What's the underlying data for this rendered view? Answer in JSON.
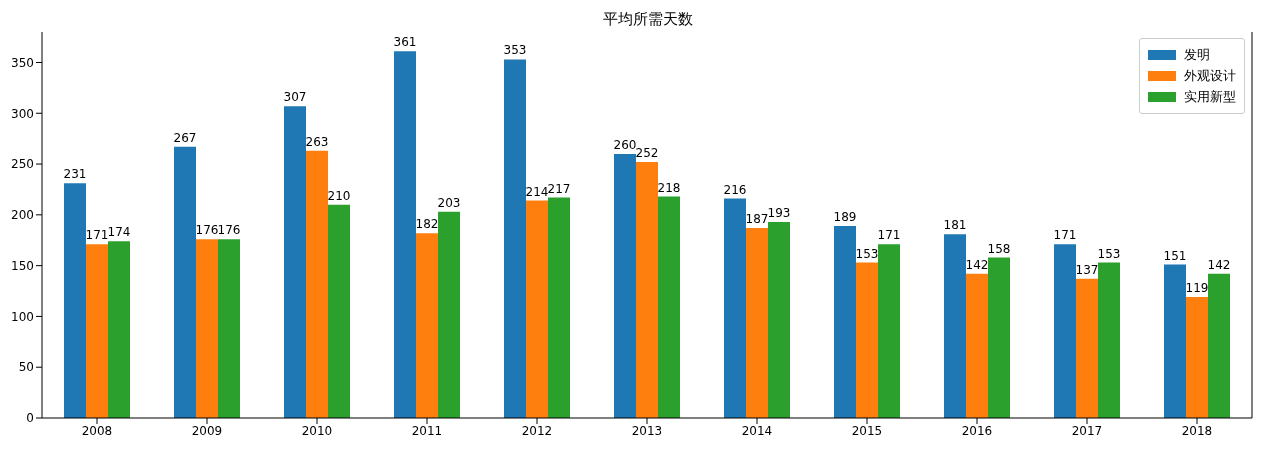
{
  "chart_data": {
    "type": "bar",
    "title": "平均所需天数",
    "categories": [
      "2008",
      "2009",
      "2010",
      "2011",
      "2012",
      "2013",
      "2014",
      "2015",
      "2016",
      "2017",
      "2018"
    ],
    "series": [
      {
        "name": "发明",
        "color": "#1f77b4",
        "values": [
          231,
          267,
          307,
          361,
          353,
          260,
          216,
          189,
          181,
          171,
          151
        ]
      },
      {
        "name": "外观设计",
        "color": "#ff7f0e",
        "values": [
          171,
          176,
          263,
          182,
          214,
          252,
          187,
          153,
          142,
          137,
          119
        ]
      },
      {
        "name": "实用新型",
        "color": "#2ca02c",
        "values": [
          174,
          176,
          210,
          203,
          217,
          218,
          193,
          171,
          158,
          153,
          142
        ]
      }
    ],
    "ylim": [
      0,
      380
    ],
    "yticks": [
      0,
      50,
      100,
      150,
      200,
      250,
      300,
      350
    ],
    "grid": false,
    "legend": "top right",
    "data_labels": true
  }
}
